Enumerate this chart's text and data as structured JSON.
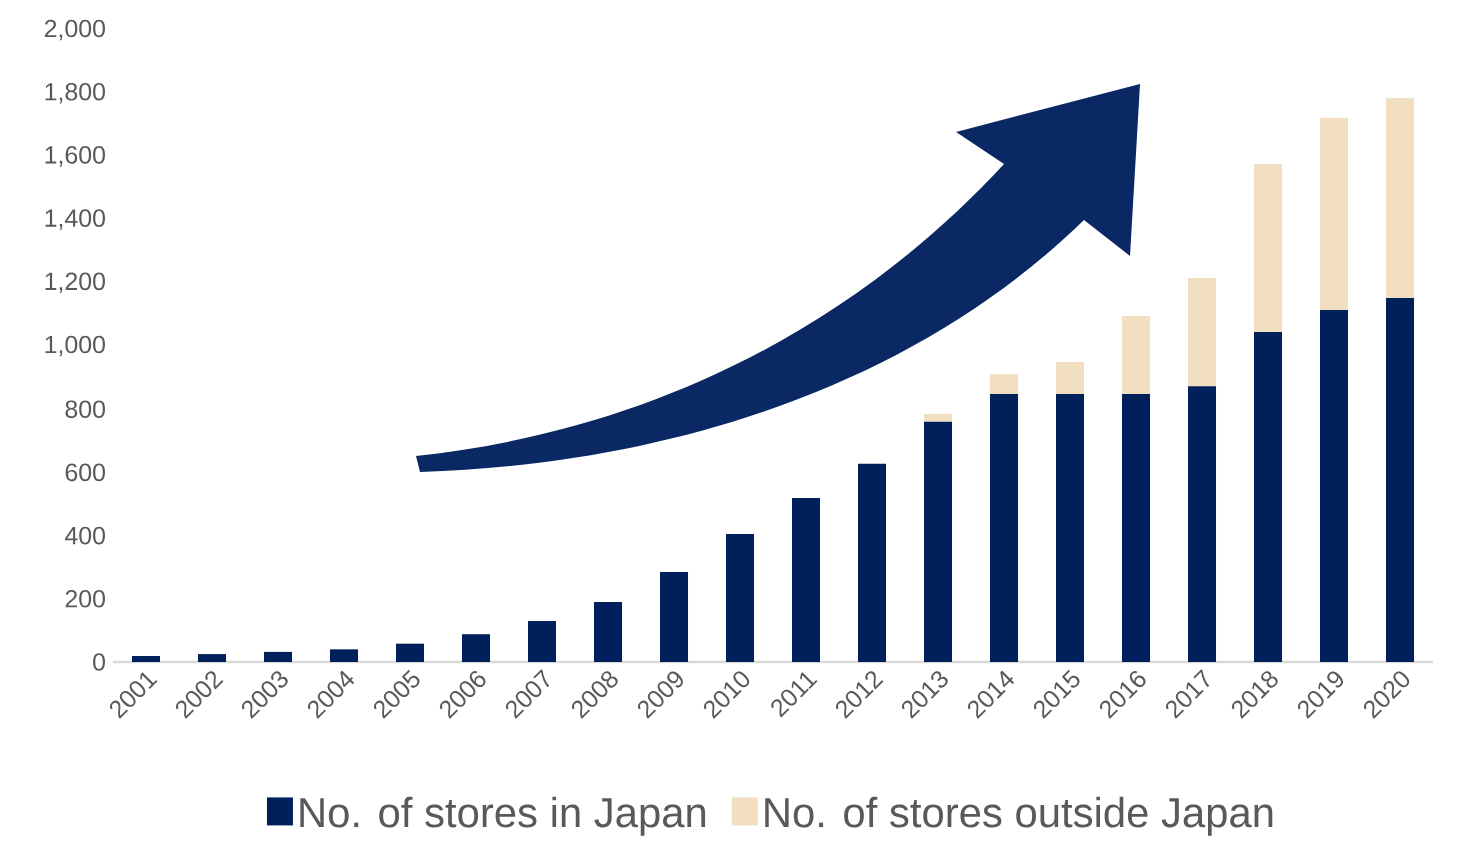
{
  "chart_data": {
    "type": "bar",
    "stacked": true,
    "legend": "bottom",
    "categories": [
      "2001",
      "2002",
      "2003",
      "2004",
      "2005",
      "2006",
      "2007",
      "2008",
      "2009",
      "2010",
      "2011",
      "2012",
      "2013",
      "2014",
      "2015",
      "2016",
      "2017",
      "2018",
      "2019",
      "2020"
    ],
    "series": [
      {
        "name": "No. of stores in Japan",
        "color": "#00205b",
        "values": [
          19,
          25,
          32,
          40,
          58,
          88,
          130,
          190,
          285,
          405,
          519,
          627,
          760,
          848,
          848,
          848,
          873,
          1044,
          1114,
          1152
        ]
      },
      {
        "name": "No. of stores outside Japan",
        "color": "#f2dfc2",
        "values": [
          0,
          0,
          0,
          0,
          0,
          0,
          0,
          0,
          0,
          0,
          0,
          0,
          25,
          63,
          101,
          247,
          342,
          532,
          608,
          633
        ]
      }
    ],
    "ylim": [
      0,
      2000
    ],
    "yticks": [
      0,
      200,
      400,
      600,
      800,
      {
        "value": 1000,
        "label": "1,000"
      },
      {
        "value": 1200,
        "label": "1,200"
      },
      {
        "value": 1400,
        "label": "1,400"
      },
      {
        "value": 1600,
        "label": "1,600"
      },
      {
        "value": 1800,
        "label": "1,800"
      },
      {
        "value": 2000,
        "label": "2,000"
      }
    ]
  }
}
